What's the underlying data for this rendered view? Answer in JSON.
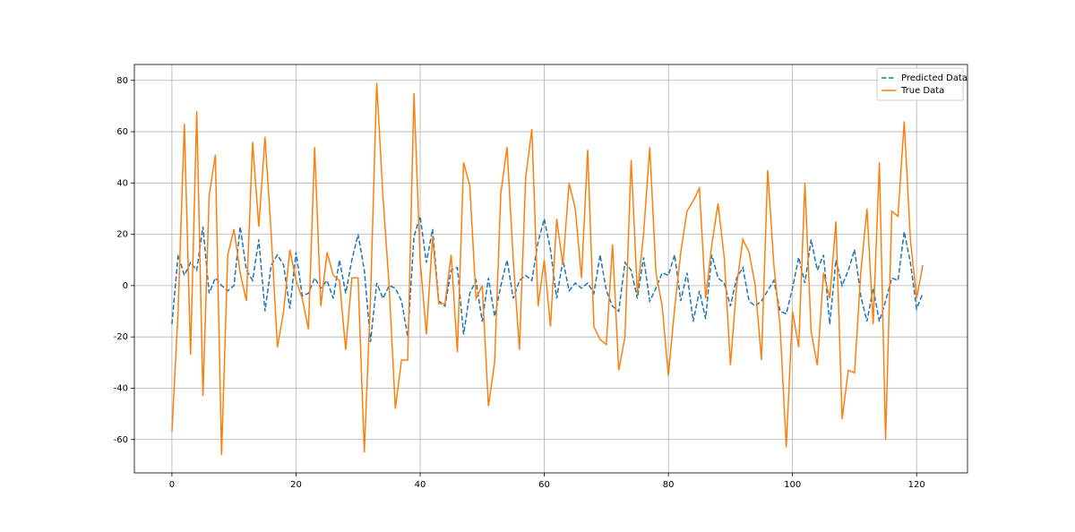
{
  "chart_data": {
    "type": "line",
    "x": [
      0,
      1,
      2,
      3,
      4,
      5,
      6,
      7,
      8,
      9,
      10,
      11,
      12,
      13,
      14,
      15,
      16,
      17,
      18,
      19,
      20,
      21,
      22,
      23,
      24,
      25,
      26,
      27,
      28,
      29,
      30,
      31,
      32,
      33,
      34,
      35,
      36,
      37,
      38,
      39,
      40,
      41,
      42,
      43,
      44,
      45,
      46,
      47,
      48,
      49,
      50,
      51,
      52,
      53,
      54,
      55,
      56,
      57,
      58,
      59,
      60,
      61,
      62,
      63,
      64,
      65,
      66,
      67,
      68,
      69,
      70,
      71,
      72,
      73,
      74,
      75,
      76,
      77,
      78,
      79,
      80,
      81,
      82,
      83,
      84,
      85,
      86,
      87,
      88,
      89,
      90,
      91,
      92,
      93,
      94,
      95,
      96,
      97,
      98,
      99,
      100,
      101,
      102,
      103,
      104,
      105,
      106,
      107,
      108,
      109,
      110,
      111,
      112,
      113,
      114,
      115,
      116,
      117,
      118,
      119,
      120,
      121
    ],
    "series": [
      {
        "name": "Predicted Data",
        "color": "#1f77b4",
        "linestyle": "dashed",
        "values": [
          -15,
          12,
          4,
          9,
          6,
          23,
          -3,
          3,
          0,
          -2,
          0,
          23,
          6,
          2,
          18,
          -10,
          8,
          12,
          8,
          -9,
          13,
          -4,
          -3,
          3,
          -1,
          2,
          -5,
          10,
          -3,
          10,
          20,
          6,
          -22,
          1,
          -5,
          0,
          -1,
          -6,
          -20,
          19,
          27,
          9,
          22,
          -6,
          -8,
          6,
          7,
          -19,
          -3,
          2,
          -14,
          3,
          -12,
          0,
          10,
          -5,
          2,
          4,
          2,
          17,
          26,
          14,
          -5,
          10,
          -2,
          1,
          -1,
          1,
          -3,
          12,
          -2,
          -8,
          -10,
          9,
          6,
          -5,
          11,
          -6,
          -1,
          5,
          4,
          12,
          -6,
          5,
          -14,
          -2,
          -13,
          12,
          3,
          1,
          -8,
          3,
          7,
          -6,
          -8,
          -6,
          -2,
          2,
          -10,
          -11,
          -1,
          11,
          1,
          18,
          6,
          12,
          -15,
          10,
          0,
          6,
          14,
          -4,
          -14,
          -1,
          -14,
          -6,
          3,
          2,
          21,
          9,
          -9,
          -3
        ]
      },
      {
        "name": "True Data",
        "color": "#ff7f0e",
        "linestyle": "solid",
        "values": [
          -57,
          -10,
          63,
          -27,
          68,
          -43,
          35,
          51,
          -66,
          12,
          22,
          5,
          -6,
          56,
          23,
          58,
          20,
          -24,
          -10,
          14,
          2,
          -5,
          -17,
          54,
          -8,
          13,
          4,
          2,
          -25,
          3,
          3,
          -65,
          -5,
          79,
          35,
          0,
          -48,
          -29,
          -29,
          75,
          10,
          -19,
          19,
          -7,
          -7,
          12,
          -26,
          48,
          39,
          -5,
          0,
          -47,
          -30,
          36,
          54,
          10,
          -25,
          42,
          61,
          -8,
          10,
          -16,
          26,
          8,
          40,
          30,
          3,
          53,
          -16,
          -21,
          -23,
          16,
          -33,
          -20,
          49,
          -3,
          20,
          54,
          5,
          -8,
          -35,
          -9,
          13,
          29,
          33,
          38,
          -5,
          16,
          32,
          11,
          -31,
          0,
          18,
          13,
          0,
          -29,
          45,
          8,
          -16,
          -63,
          -10,
          -24,
          40,
          -18,
          -31,
          5,
          -5,
          25,
          -52,
          -33,
          -34,
          5,
          30,
          -15,
          48,
          -60,
          29,
          27,
          64,
          18,
          -5,
          8
        ]
      }
    ],
    "xlim": [
      -6.05,
      128.2
    ],
    "xticks": [
      0,
      20,
      40,
      60,
      80,
      100,
      120
    ],
    "ylim": [
      -73,
      86.2
    ],
    "yticks": [
      -60,
      -40,
      -20,
      0,
      20,
      40,
      60,
      80
    ],
    "grid": true,
    "legend": "upper right"
  }
}
